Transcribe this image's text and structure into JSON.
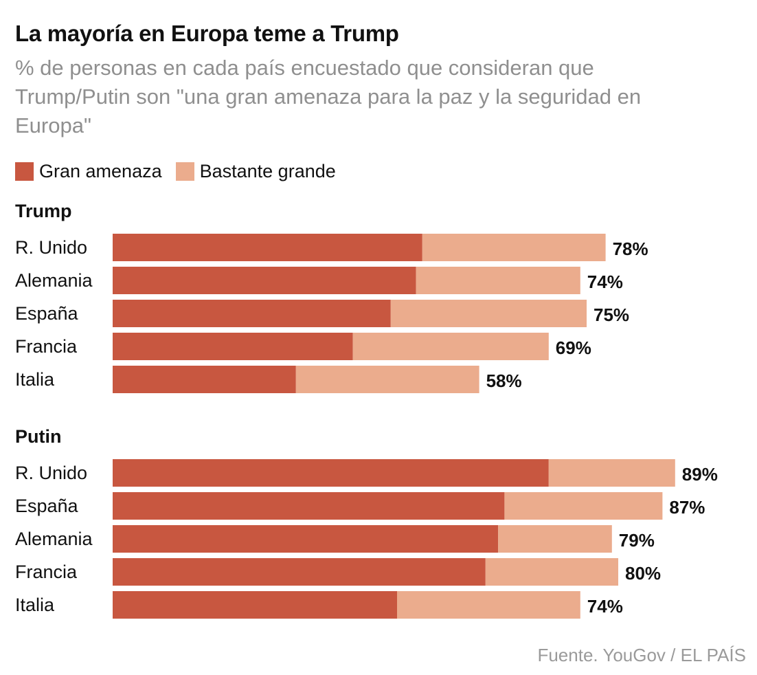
{
  "header": {
    "title": "La mayoría en Europa teme a Trump",
    "subtitle": "% de personas en cada país encuestado que consideran que Trump/Putin son \"una gran amenaza para la paz y la seguridad en Europa\""
  },
  "legend": {
    "items": [
      {
        "label": "Gran amenaza",
        "color": "#c85740"
      },
      {
        "label": "Bastante grande",
        "color": "#ebac8d"
      }
    ]
  },
  "source": "Fuente. YouGov / EL PAÍS",
  "chart_data": {
    "type": "bar",
    "orientation": "horizontal",
    "stacked": true,
    "xlim": [
      0,
      100
    ],
    "series_names": [
      "Gran amenaza",
      "Bastante grande"
    ],
    "colors": {
      "Gran amenaza": "#c85740",
      "Bastante grande": "#ebac8d"
    },
    "groups": [
      {
        "title": "Trump",
        "rows": [
          {
            "country": "R. Unido",
            "gran": 49,
            "bastante": 29,
            "total_label": "78%"
          },
          {
            "country": "Alemania",
            "gran": 48,
            "bastante": 26,
            "total_label": "74%"
          },
          {
            "country": "España",
            "gran": 44,
            "bastante": 31,
            "total_label": "75%"
          },
          {
            "country": "Francia",
            "gran": 38,
            "bastante": 31,
            "total_label": "69%"
          },
          {
            "country": "Italia",
            "gran": 29,
            "bastante": 29,
            "total_label": "58%"
          }
        ]
      },
      {
        "title": "Putin",
        "rows": [
          {
            "country": "R. Unido",
            "gran": 69,
            "bastante": 20,
            "total_label": "89%"
          },
          {
            "country": "España",
            "gran": 62,
            "bastante": 25,
            "total_label": "87%"
          },
          {
            "country": "Alemania",
            "gran": 61,
            "bastante": 18,
            "total_label": "79%"
          },
          {
            "country": "Francia",
            "gran": 59,
            "bastante": 21,
            "total_label": "80%"
          },
          {
            "country": "Italia",
            "gran": 45,
            "bastante": 29,
            "total_label": "74%"
          }
        ]
      }
    ]
  }
}
